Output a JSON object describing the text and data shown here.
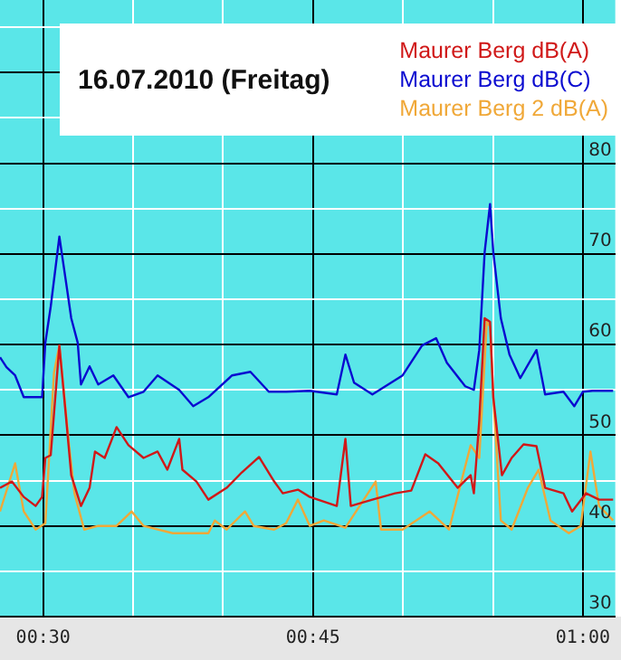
{
  "chart_data": {
    "type": "line",
    "title": "16.07.2010 (Freitag)",
    "legend": "top right",
    "grid": true,
    "marker": "none",
    "line_style": "solid",
    "xlim": [
      0.46,
      1.03
    ],
    "ylim": [
      30,
      98
    ],
    "xticks": [
      {
        "value": 0.5,
        "label": "00:30"
      },
      {
        "value": 0.5833,
        "label": null
      },
      {
        "value": 0.6667,
        "label": null
      },
      {
        "value": 0.75,
        "label": "00:45"
      },
      {
        "value": 0.8333,
        "label": null
      },
      {
        "value": 0.9167,
        "label": null
      },
      {
        "value": 1.0,
        "label": "01:00"
      }
    ],
    "yticks": [
      30,
      {
        "value": 35,
        "label": null
      },
      40,
      {
        "value": 45,
        "label": null
      },
      50,
      {
        "value": 55,
        "label": null
      },
      60,
      {
        "value": 65,
        "label": null
      },
      70,
      {
        "value": 75,
        "label": null
      },
      80,
      {
        "value": 85,
        "label": null
      },
      {
        "value": 90,
        "label": null
      },
      {
        "value": 95,
        "label": null
      }
    ],
    "series": [
      {
        "name": "Maurer Berg dB(A)",
        "color": "#d01818",
        "x": [
          0.46,
          0.471,
          0.482,
          0.493,
          0.499,
          0.502,
          0.507,
          0.515,
          0.521,
          0.526,
          0.535,
          0.543,
          0.548,
          0.557,
          0.568,
          0.579,
          0.593,
          0.606,
          0.615,
          0.626,
          0.629,
          0.642,
          0.653,
          0.67,
          0.684,
          0.7,
          0.714,
          0.722,
          0.736,
          0.747,
          0.772,
          0.78,
          0.785,
          0.805,
          0.826,
          0.841,
          0.854,
          0.866,
          0.884,
          0.896,
          0.899,
          0.904,
          0.909,
          0.914,
          0.917,
          0.925,
          0.934,
          0.945,
          0.957,
          0.965,
          0.982,
          0.99,
          1.003,
          1.015,
          1.028
        ],
        "values": [
          44.2,
          44.9,
          43.2,
          42.2,
          43.2,
          47.5,
          47.8,
          59.9,
          52.2,
          45.6,
          42.2,
          44.2,
          48.2,
          47.5,
          50.9,
          48.9,
          47.5,
          48.2,
          46.2,
          49.6,
          46.2,
          44.9,
          42.9,
          44.2,
          45.9,
          47.6,
          44.9,
          43.6,
          44,
          43.2,
          42.2,
          49.6,
          42.2,
          42.9,
          43.6,
          43.9,
          47.9,
          46.9,
          44.2,
          45.6,
          43.6,
          51.6,
          62.9,
          62.5,
          54.2,
          45.6,
          47.5,
          49,
          48.8,
          44.2,
          43.6,
          41.6,
          43.6,
          42.9,
          42.9
        ]
      },
      {
        "name": "Maurer Berg dB(C)",
        "color": "#0a0ad0",
        "x": [
          0.46,
          0.466,
          0.474,
          0.482,
          0.499,
          0.502,
          0.507,
          0.515,
          0.522,
          0.526,
          0.532,
          0.535,
          0.543,
          0.551,
          0.565,
          0.579,
          0.593,
          0.606,
          0.626,
          0.639,
          0.653,
          0.675,
          0.692,
          0.709,
          0.725,
          0.747,
          0.772,
          0.78,
          0.788,
          0.805,
          0.833,
          0.851,
          0.864,
          0.874,
          0.891,
          0.899,
          0.904,
          0.909,
          0.914,
          0.917,
          0.924,
          0.932,
          0.942,
          0.957,
          0.965,
          0.982,
          0.992,
          1.0,
          1.009,
          1.028
        ],
        "values": [
          58.6,
          57.5,
          56.6,
          54.2,
          54.2,
          60.2,
          64.2,
          71.9,
          66.2,
          62.9,
          60.2,
          55.6,
          57.6,
          55.6,
          56.6,
          54.2,
          54.8,
          56.6,
          55,
          53.2,
          54.2,
          56.6,
          57,
          54.8,
          54.8,
          54.9,
          54.5,
          58.9,
          55.8,
          54.5,
          56.6,
          59.9,
          60.7,
          58,
          55.4,
          55,
          59.4,
          70.2,
          75.5,
          70.2,
          62.9,
          58.9,
          56.3,
          59.4,
          54.5,
          54.8,
          53.2,
          54.8,
          54.9,
          54.9
        ]
      },
      {
        "name": "Maurer Berg 2 dB(A)",
        "color": "#f0a838",
        "x": [
          0.46,
          0.474,
          0.482,
          0.493,
          0.502,
          0.51,
          0.515,
          0.524,
          0.529,
          0.538,
          0.551,
          0.568,
          0.582,
          0.593,
          0.62,
          0.653,
          0.659,
          0.67,
          0.687,
          0.695,
          0.714,
          0.725,
          0.736,
          0.747,
          0.76,
          0.78,
          0.808,
          0.813,
          0.833,
          0.858,
          0.876,
          0.896,
          0.904,
          0.911,
          0.914,
          0.917,
          0.924,
          0.934,
          0.949,
          0.959,
          0.97,
          0.987,
          0.998,
          1.007,
          1.015,
          1.028
        ],
        "values": [
          41.6,
          46.9,
          41.6,
          39.6,
          40.3,
          56.9,
          59.9,
          48.9,
          43.6,
          39.6,
          40,
          40,
          41.6,
          40,
          39.2,
          39.2,
          40.6,
          39.6,
          41.6,
          40,
          39.6,
          40.3,
          42.9,
          40,
          40.6,
          39.8,
          44.9,
          39.6,
          39.6,
          41.6,
          39.6,
          48.9,
          47.5,
          62.5,
          62,
          54.2,
          40.6,
          39.6,
          44.2,
          46.2,
          40.6,
          39.2,
          40,
          48.2,
          42.2,
          40.6
        ]
      }
    ]
  }
}
